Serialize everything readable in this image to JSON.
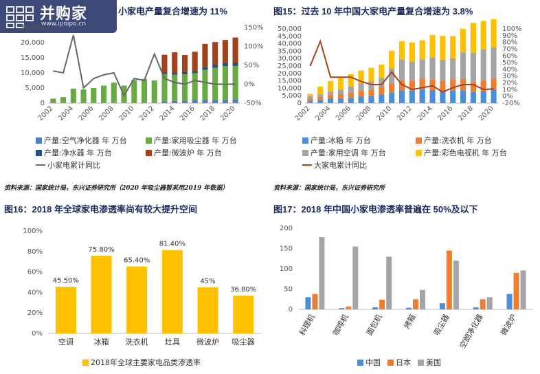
{
  "logo": {
    "name": "并购家",
    "url": "www.ipoipo.cn"
  },
  "fig14": {
    "title": "小家电产量复合增速为 11%",
    "chart_data": {
      "type": "bar",
      "stacked": true,
      "x": [
        "2002",
        "2003",
        "2004",
        "2005",
        "2006",
        "2007",
        "2008",
        "2009",
        "2010",
        "2011",
        "2012",
        "2013",
        "2014",
        "2015",
        "2016",
        "2017",
        "2018",
        "2019",
        "2020"
      ],
      "xticks": [
        "2002",
        "2004",
        "2006",
        "2008",
        "2010",
        "2012",
        "2014",
        "2016",
        "2018",
        "2020"
      ],
      "ylim": [
        0,
        25000
      ],
      "yticks": [
        0,
        5000,
        10000,
        15000,
        20000,
        25000
      ],
      "y2lim": [
        -50,
        150
      ],
      "y2ticks": [
        "-50%",
        "0%",
        "50%",
        "100%",
        "150%"
      ],
      "series": [
        {
          "name": "产量:空气净化器 年 万台",
          "color": "#4a7fc1",
          "values": [
            0,
            0,
            0,
            0,
            0,
            0,
            0,
            0,
            0,
            0,
            0,
            600,
            700,
            800,
            900,
            1000,
            1100,
            1200,
            1300
          ]
        },
        {
          "name": "产量:家用吸尘器 年 万台",
          "color": "#6aaa45",
          "values": [
            1500,
            2000,
            4800,
            4500,
            5000,
            5800,
            6800,
            5800,
            7600,
            8000,
            7500,
            9000,
            8700,
            8700,
            9000,
            10000,
            10600,
            11000,
            11000
          ]
        },
        {
          "name": "产量:净水器 年 万台",
          "color": "#2a4f7a",
          "values": [
            0,
            0,
            0,
            0,
            0,
            0,
            0,
            0,
            0,
            0,
            0,
            600,
            700,
            800,
            800,
            900,
            1000,
            1000,
            1100
          ]
        },
        {
          "name": "产量:微波炉 年 万台",
          "color": "#a0431c",
          "values": [
            0,
            0,
            0,
            0,
            0,
            0,
            0,
            0,
            0,
            0,
            0,
            5800,
            6700,
            5600,
            6300,
            7700,
            7500,
            7700,
            8300
          ]
        },
        {
          "name": "小家电累计同比",
          "color": "#666666",
          "axis": "y2",
          "type": "line",
          "values": [
            35,
            30,
            130,
            -10,
            15,
            25,
            30,
            -30,
            15,
            10,
            80,
            15,
            5,
            0,
            10,
            5,
            0,
            0,
            0
          ]
        }
      ]
    }
  },
  "fig15": {
    "title": "图15：过去 10 年中国大家电产量复合增速为 3.8%",
    "chart_data": {
      "type": "bar",
      "stacked": true,
      "x": [
        "2002",
        "2003",
        "2004",
        "2005",
        "2006",
        "2007",
        "2008",
        "2009",
        "2010",
        "2011",
        "2012",
        "2013",
        "2014",
        "2015",
        "2016",
        "2017",
        "2018",
        "2019",
        "2020"
      ],
      "xticks": [
        "2002",
        "2004",
        "2006",
        "2008",
        "2010",
        "2012",
        "2014",
        "2016",
        "2018",
        "2020"
      ],
      "ylim": [
        0,
        50000
      ],
      "yticks": [
        "0",
        "5,000",
        "10,000",
        "15,000",
        "20,000",
        "25,000",
        "30,000",
        "35,000",
        "40,000",
        "45,000",
        "50,000"
      ],
      "y2lim": [
        -20,
        100
      ],
      "y2ticks": [
        "-20%",
        "0%",
        "10%",
        "20%",
        "30%",
        "40%",
        "50%",
        "60%",
        "70%",
        "80%",
        "90%",
        "100%"
      ],
      "series": [
        {
          "name": "产量:冰箱 年 万台",
          "color": "#4a90d9",
          "values": [
            1600,
            2200,
            3000,
            3000,
            3600,
            4400,
            4800,
            5900,
            7300,
            8700,
            8400,
            9300,
            8800,
            7900,
            8500,
            8700,
            7500,
            7900,
            9000
          ]
        },
        {
          "name": "产量:洗衣机 年 万台",
          "color": "#ed7d31",
          "values": [
            1600,
            2000,
            2500,
            3000,
            3500,
            4000,
            4300,
            5000,
            6200,
            6700,
            6700,
            7200,
            7100,
            7300,
            7600,
            7500,
            6500,
            7400,
            7500
          ]
        },
        {
          "name": "产量:家用空调 年 万台",
          "color": "#a5a5a5",
          "values": [
            1500,
            1900,
            2500,
            3000,
            4000,
            5000,
            5500,
            6000,
            10000,
            14000,
            13000,
            13000,
            15000,
            14000,
            14000,
            18000,
            20000,
            21000,
            21000
          ]
        },
        {
          "name": "产量:彩色电视机 年 万台",
          "color": "#ffc000",
          "values": [
            1500,
            5000,
            7000,
            8000,
            8400,
            8500,
            9200,
            9000,
            11800,
            12200,
            12800,
            12800,
            15000,
            16000,
            15000,
            15800,
            20000,
            19000,
            19000
          ]
        },
        {
          "name": "大家电累计同比",
          "color": "#a0431c",
          "axis": "y2",
          "type": "line",
          "values": [
            40,
            80,
            22,
            22,
            22,
            15,
            10,
            10,
            30,
            10,
            2,
            5,
            8,
            -2,
            5,
            10,
            10,
            2,
            3
          ]
        }
      ]
    }
  },
  "source1": "资料来源：国家统计局，东兴证券研究所（2020 年吸尘器暂采用2019 年数据）",
  "source2": "资料来源：国家统计局，东兴证券研究所",
  "fig16": {
    "title": "图16：2018 年全球家电渗透率尚有较大提升空间",
    "chart_data": {
      "type": "bar",
      "categories": [
        "空调",
        "冰箱",
        "洗衣机",
        "灶具",
        "微波炉",
        "吸尘器"
      ],
      "values": [
        45.5,
        75.8,
        65.4,
        81.4,
        45,
        36.8
      ],
      "labels": [
        "45.50%",
        "75.80%",
        "65.40%",
        "81.40%",
        "45%",
        "36.80%"
      ],
      "ylim": [
        0,
        100
      ],
      "yticks": [
        "0%",
        "20%",
        "40%",
        "60%",
        "80%",
        "100%"
      ],
      "series_name": "2018年全球主要家电品类渗透率",
      "color": "#ffc000"
    }
  },
  "fig17": {
    "title": "图17：2018 年中国小家电渗透率普遍在 50%及以下",
    "chart_data": {
      "type": "bar",
      "categories": [
        "料理机",
        "咖啡机",
        "面包机",
        "烤箱",
        "吸尘器",
        "空朗净化器",
        "微波炉"
      ],
      "ylim": [
        0,
        200
      ],
      "yticks": [
        "0",
        "50",
        "100",
        "150",
        "200"
      ],
      "series": [
        {
          "name": "中国",
          "color": "#4a90d9",
          "values": [
            30,
            3,
            5,
            4,
            15,
            5,
            38
          ]
        },
        {
          "name": "日本",
          "color": "#ed7d31",
          "values": [
            38,
            7,
            24,
            25,
            145,
            25,
            90
          ]
        },
        {
          "name": "美国",
          "color": "#a5a5a5",
          "values": [
            178,
            155,
            130,
            48,
            120,
            30,
            96
          ]
        }
      ]
    }
  }
}
